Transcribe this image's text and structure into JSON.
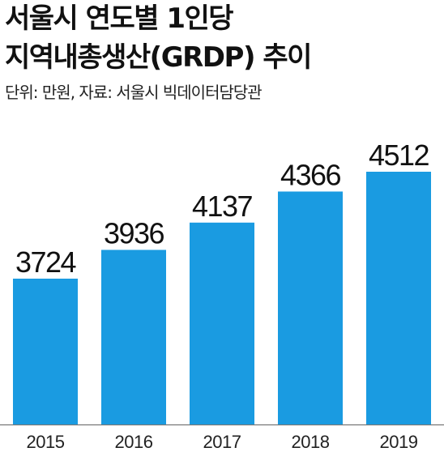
{
  "header": {
    "title_line1": "서울시 연도별 1인당",
    "title_line2": "지역내총생산(GRDP) 추이",
    "subtitle": "단위: 만원, 자료: 서울시 빅데이터담당관"
  },
  "colors": {
    "bar": "#1a9be1",
    "axis": "#777777"
  },
  "chart_data": {
    "type": "bar",
    "title": "서울시 연도별 1인당 지역내총생산(GRDP) 추이",
    "subtitle": "단위: 만원, 자료: 서울시 빅데이터담당관",
    "categories": [
      "2015",
      "2016",
      "2017",
      "2018",
      "2019"
    ],
    "values": [
      3724,
      3936,
      4137,
      4366,
      4512
    ],
    "xlabel": "",
    "ylabel": "",
    "grid": false,
    "legend": "none"
  }
}
